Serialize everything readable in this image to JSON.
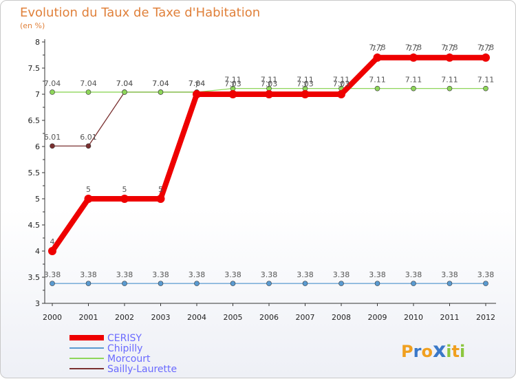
{
  "chart_data": {
    "type": "line",
    "title": "Evolution du Taux de Taxe d'Habitation",
    "subtitle": "(en %)",
    "xlabel": "",
    "ylabel": "",
    "ylim": [
      3,
      8
    ],
    "yticks": [
      "3",
      "3.5",
      "4",
      "4.5",
      "5",
      "5.5",
      "6",
      "6.5",
      "7",
      "7.5",
      "8"
    ],
    "categories": [
      "2000",
      "2001",
      "2002",
      "2003",
      "2004",
      "2005",
      "2006",
      "2007",
      "2008",
      "2009",
      "2010",
      "2011",
      "2012"
    ],
    "grid": false,
    "legend_position": "bottom-left",
    "series": [
      {
        "name": "Sailly-Laurette",
        "color": "#7a3030",
        "values": [
          6.01,
          6.01,
          7.04,
          7.04,
          7.04,
          7.03,
          7.03,
          7.03,
          7.03,
          7.73,
          7.73,
          7.73,
          7.73
        ],
        "labels": [
          "6.01",
          "6.01",
          "7.04",
          "7.04",
          "7.04",
          "7.03",
          "7.03",
          "7.03",
          "7.03",
          "7.73",
          "7.73",
          "7.73",
          "7.73"
        ]
      },
      {
        "name": "Morcourt",
        "color": "#8ed65a",
        "values": [
          7.04,
          7.04,
          7.04,
          7.04,
          7.04,
          7.11,
          7.11,
          7.11,
          7.11,
          7.11,
          7.11,
          7.11,
          7.11
        ],
        "labels": [
          "7.04",
          "7.04",
          "7.04",
          "7.04",
          "7.04",
          "7.11",
          "7.11",
          "7.11",
          "7.11",
          "7.11",
          "7.11",
          "7.11",
          "7.11"
        ]
      },
      {
        "name": "Chipilly",
        "color": "#5a9ad0",
        "values": [
          3.38,
          3.38,
          3.38,
          3.38,
          3.38,
          3.38,
          3.38,
          3.38,
          3.38,
          3.38,
          3.38,
          3.38,
          3.38
        ],
        "labels": [
          "3.38",
          "3.38",
          "3.38",
          "3.38",
          "3.38",
          "3.38",
          "3.38",
          "3.38",
          "3.38",
          "3.38",
          "3.38",
          "3.38",
          "3.38"
        ]
      },
      {
        "name": "CERISY",
        "color": "#ee0000",
        "values": [
          4,
          5,
          5,
          5,
          7,
          7,
          7,
          7,
          7,
          7.7,
          7.7,
          7.7,
          7.7
        ],
        "labels": [
          "4",
          "5",
          "5",
          "5",
          "7",
          "7",
          "7",
          "7",
          "7",
          "7.7",
          "7.7",
          "7.7",
          "7.7"
        ]
      }
    ],
    "legend": [
      "CERISY",
      "Chipilly",
      "Morcourt",
      "Sailly-Laurette"
    ]
  },
  "brand": {
    "letters": [
      "P",
      "r",
      "o",
      "x",
      "i",
      "t",
      "i"
    ],
    "colors": [
      "#f0a020",
      "#3a78c8",
      "#f0a020",
      "#3a78c8",
      "#8cc63e",
      "#f0a020",
      "#8cc63e"
    ]
  }
}
